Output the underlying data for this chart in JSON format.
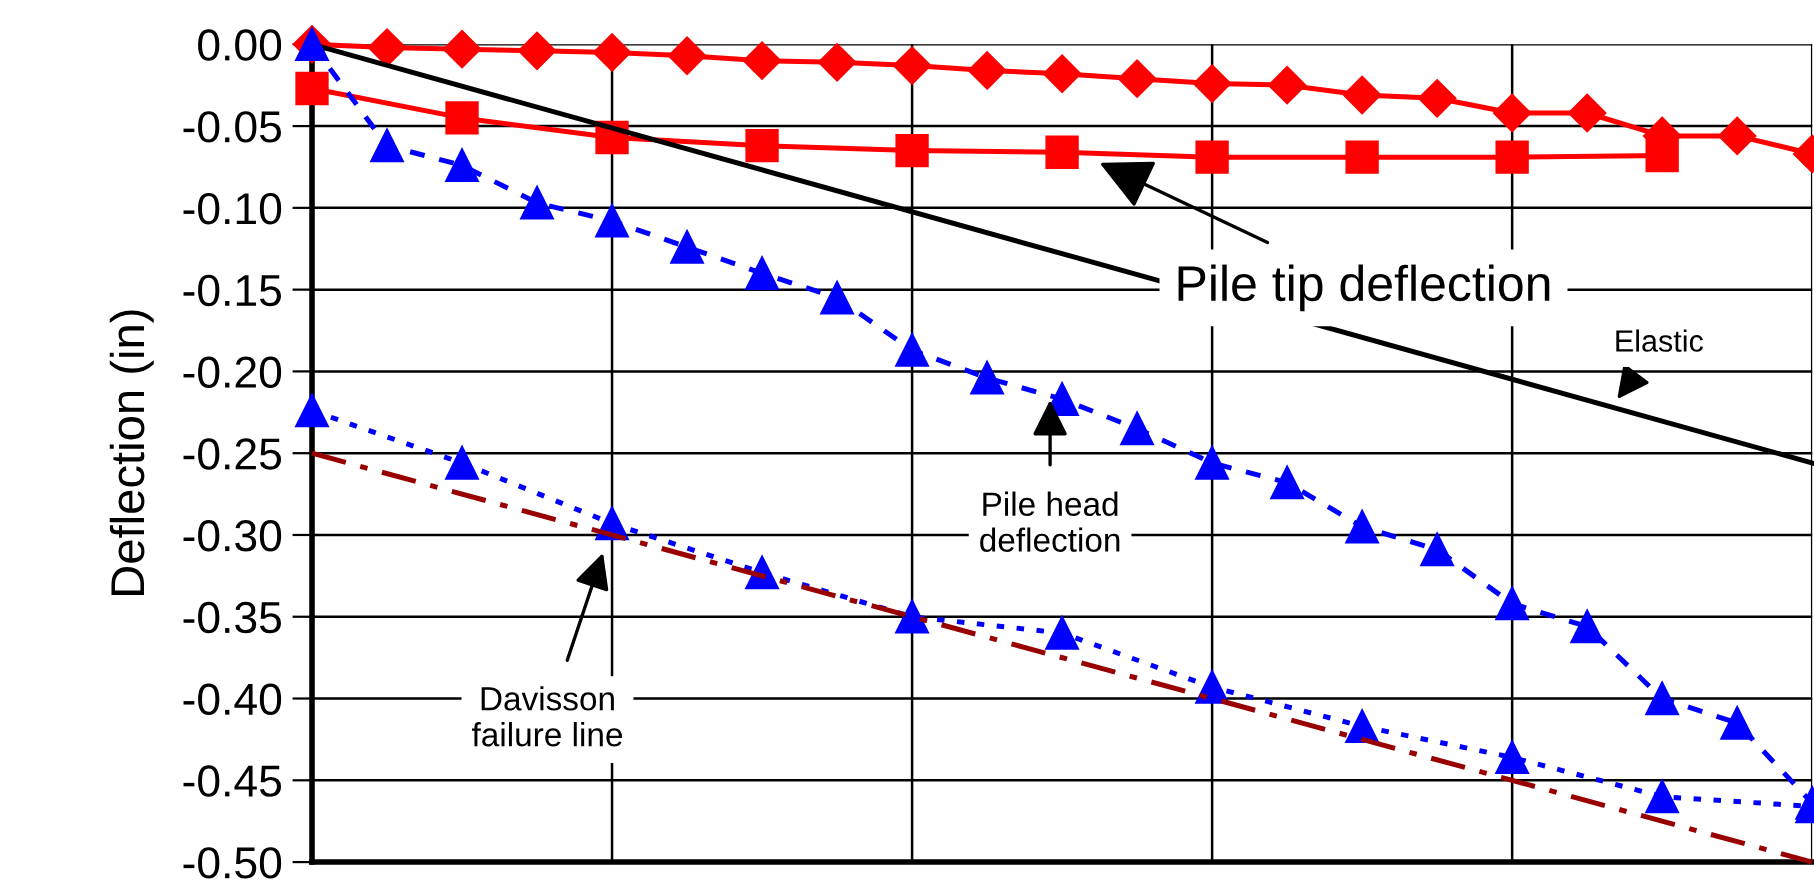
{
  "chart_data": {
    "type": "line",
    "ylabel": "Deflection (in)",
    "categories": [
      null,
      null,
      null,
      null,
      null,
      null,
      null,
      null,
      null,
      null,
      null,
      null,
      null,
      null,
      null,
      null,
      null,
      null,
      null,
      null,
      null
    ],
    "ylim": [
      -0.5,
      0
    ],
    "yticks": [
      {
        "value": 0,
        "label": "0.00"
      },
      {
        "value": -0.05,
        "label": "-0.05"
      },
      {
        "value": -0.1,
        "label": "-0.10"
      },
      {
        "value": -0.15,
        "label": "-0.15"
      },
      {
        "value": -0.2,
        "label": "-0.20"
      },
      {
        "value": -0.25,
        "label": "-0.25"
      },
      {
        "value": -0.3,
        "label": "-0.30"
      },
      {
        "value": -0.35,
        "label": "-0.35"
      },
      {
        "value": -0.4,
        "label": "-0.40"
      },
      {
        "value": -0.45,
        "label": "-0.45"
      },
      {
        "value": -0.5,
        "label": "-0.50"
      }
    ],
    "grid": true,
    "series": [
      {
        "color": "#ff0000",
        "marker": "diamond",
        "line_style": "solid",
        "values": [
          0,
          -0.002,
          -0.003,
          -0.004,
          -0.005,
          -0.007,
          -0.01,
          -0.011,
          -0.013,
          -0.016,
          -0.018,
          -0.021,
          -0.024,
          -0.025,
          -0.031,
          -0.033,
          -0.042,
          -0.042,
          -0.056,
          -0.056,
          -0.067
        ]
      },
      {
        "color": "#ff0000",
        "marker": "square",
        "line_style": "solid",
        "values": [
          -0.027,
          null,
          -0.045,
          null,
          -0.057,
          null,
          -0.062,
          null,
          -0.065,
          null,
          -0.066,
          null,
          -0.069,
          null,
          -0.069,
          null,
          -0.069,
          null,
          -0.068,
          null,
          null
        ]
      },
      {
        "color": "#000000",
        "marker": "none",
        "line_style": "solid",
        "values": [
          0,
          null,
          null,
          null,
          null,
          null,
          null,
          null,
          null,
          null,
          null,
          null,
          null,
          null,
          null,
          null,
          null,
          null,
          null,
          null,
          -0.256
        ]
      },
      {
        "color": "#0000ff",
        "marker": "triangle",
        "line_style": "dashed",
        "values": [
          0,
          -0.062,
          -0.074,
          -0.097,
          -0.108,
          -0.124,
          -0.14,
          -0.155,
          -0.187,
          -0.204,
          -0.217,
          -0.235,
          -0.256,
          -0.268,
          -0.295,
          -0.309,
          -0.342,
          -0.356,
          -0.4,
          -0.415,
          -0.464
        ]
      },
      {
        "color": "#0000ff",
        "marker": "triangle",
        "line_style": "dotted",
        "values": [
          -0.224,
          null,
          -0.256,
          null,
          -0.293,
          null,
          -0.323,
          null,
          -0.35,
          null,
          -0.36,
          null,
          -0.393,
          null,
          -0.417,
          null,
          -0.436,
          null,
          -0.46,
          null,
          -0.466
        ]
      },
      {
        "color": "#990000",
        "marker": "none",
        "line_style": "dashdot",
        "values": [
          -0.25,
          null,
          null,
          null,
          null,
          null,
          null,
          null,
          null,
          null,
          null,
          null,
          null,
          null,
          null,
          null,
          null,
          null,
          null,
          null,
          -0.5
        ]
      }
    ],
    "annotations": [
      "Pile tip deflection",
      "Elastic",
      "Pile head deflection",
      "Davisson failure line"
    ]
  }
}
